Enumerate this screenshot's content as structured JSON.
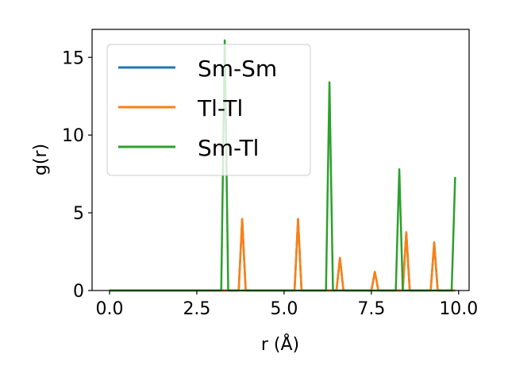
{
  "chart_data": {
    "type": "line",
    "title": "",
    "xlabel": "r (Å)",
    "ylabel": "g(r)",
    "xlim": [
      -0.5,
      10.3
    ],
    "ylim": [
      0,
      16.8
    ],
    "xticks": [
      0.0,
      2.5,
      5.0,
      7.5,
      10.0
    ],
    "xtick_labels": [
      "0.0",
      "2.5",
      "5.0",
      "7.5",
      "10.0"
    ],
    "yticks": [
      0,
      5,
      10,
      15
    ],
    "ytick_labels": [
      "0",
      "5",
      "10",
      "15"
    ],
    "grid": false,
    "legend_position": "top-left",
    "series": [
      {
        "name": "Sm-Sm",
        "color": "#1f77b4",
        "x": [
          0.0,
          3.7,
          3.8,
          3.9,
          5.3,
          5.4,
          5.5,
          6.5,
          6.6,
          6.7,
          7.5,
          7.6,
          7.7,
          8.4,
          8.5,
          8.6,
          9.2,
          9.3,
          9.4,
          9.9
        ],
        "y": [
          0,
          0,
          4.6,
          0,
          0,
          4.6,
          0,
          0,
          2.1,
          0,
          0,
          1.2,
          0,
          0,
          3.75,
          0,
          0,
          3.1,
          0,
          0
        ]
      },
      {
        "name": "Tl-Tl",
        "color": "#ff7f0e",
        "x": [
          0.0,
          3.7,
          3.8,
          3.9,
          5.3,
          5.4,
          5.5,
          6.5,
          6.6,
          6.7,
          7.5,
          7.6,
          7.7,
          8.4,
          8.5,
          8.6,
          9.2,
          9.3,
          9.4,
          9.9
        ],
        "y": [
          0,
          0,
          4.6,
          0,
          0,
          4.6,
          0,
          0,
          2.1,
          0,
          0,
          1.2,
          0,
          0,
          3.75,
          0,
          0,
          3.1,
          0,
          0
        ]
      },
      {
        "name": "Sm-Tl",
        "color": "#2ca02c",
        "x": [
          0.0,
          3.2,
          3.3,
          3.4,
          6.2,
          6.3,
          6.4,
          8.2,
          8.3,
          8.4,
          9.8,
          9.9
        ],
        "y": [
          0,
          0,
          16.1,
          0,
          0,
          13.4,
          0,
          0,
          7.8,
          0,
          0,
          7.3
        ]
      }
    ]
  }
}
